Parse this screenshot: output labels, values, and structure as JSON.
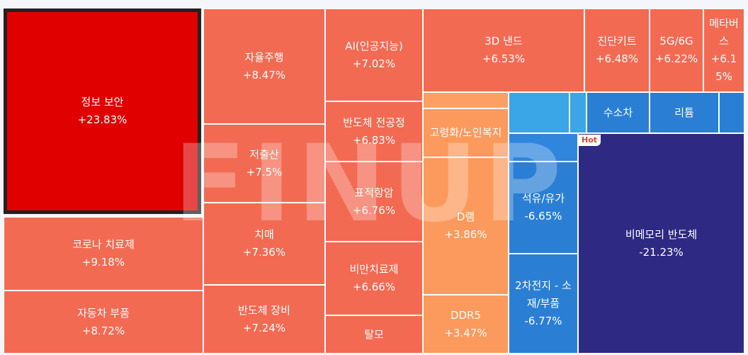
{
  "chart_data": {
    "type": "treemap",
    "cells": [
      {
        "id": "jeongbo-boan",
        "name": "정보 보안",
        "change": "+23.83%",
        "value": 23.83,
        "color": "#e00000",
        "selected": true,
        "r": [
          5,
          12,
          284,
          302
        ]
      },
      {
        "id": "corona",
        "name": "코로나 치료제",
        "change": "+9.18%",
        "value": 9.18,
        "color": "#f36a52",
        "r": [
          5,
          306,
          287,
          410
        ]
      },
      {
        "id": "car-parts",
        "name": "자동차 부품",
        "change": "+8.72%",
        "value": 8.72,
        "color": "#f36a52",
        "r": [
          5,
          410,
          287,
          499
        ]
      },
      {
        "id": "autonomous",
        "name": "자율주행",
        "change": "+8.47%",
        "value": 8.47,
        "color": "#f36a52",
        "r": [
          287,
          12,
          459,
          175
        ]
      },
      {
        "id": "low-birth",
        "name": "저출산",
        "change": "+7.5%",
        "value": 7.5,
        "color": "#f36a52",
        "r": [
          287,
          175,
          459,
          286
        ]
      },
      {
        "id": "dementia",
        "name": "치매",
        "change": "+7.36%",
        "value": 7.36,
        "color": "#f36a52",
        "r": [
          287,
          286,
          459,
          402
        ]
      },
      {
        "id": "semi-equip",
        "name": "반도체 장비",
        "change": "+7.24%",
        "value": 7.24,
        "color": "#f36a52",
        "r": [
          287,
          402,
          459,
          499
        ]
      },
      {
        "id": "ai",
        "name": "AI(인공지능)",
        "change": "+7.02%",
        "value": 7.02,
        "color": "#f36a52",
        "r": [
          459,
          12,
          597,
          143
        ]
      },
      {
        "id": "semi-front",
        "name": "반도체 전공정",
        "change": "+6.83%",
        "value": 6.83,
        "color": "#f36a52",
        "r": [
          459,
          143,
          597,
          228
        ]
      },
      {
        "id": "targeted",
        "name": "표적항암",
        "change": "+6.76%",
        "value": 6.76,
        "color": "#f36a52",
        "r": [
          459,
          228,
          597,
          341
        ]
      },
      {
        "id": "obesity",
        "name": "비만치료제",
        "change": "+6.66%",
        "value": 6.66,
        "color": "#f36a52",
        "r": [
          459,
          341,
          597,
          445
        ]
      },
      {
        "id": "hair-loss",
        "name": "탈모",
        "change": "",
        "value": null,
        "color": "#f36a52",
        "r": [
          459,
          445,
          597,
          499
        ]
      },
      {
        "id": "nand-3d",
        "name": "3D 낸드",
        "change": "+6.53%",
        "value": 6.53,
        "color": "#f36a52",
        "r": [
          597,
          12,
          825,
          130
        ]
      },
      {
        "id": "diagnostic",
        "name": "진단키트",
        "change": "+6.48%",
        "value": 6.48,
        "color": "#f36a52",
        "r": [
          825,
          12,
          917,
          130
        ]
      },
      {
        "id": "5g6g",
        "name": "5G/6G",
        "change": "+6.22%",
        "value": 6.22,
        "color": "#f36a52",
        "r": [
          917,
          12,
          993,
          130
        ]
      },
      {
        "id": "metaverse",
        "name": "메타버스",
        "change": "+6.15%",
        "value": 6.15,
        "color": "#f36a52",
        "r": [
          993,
          12,
          1051,
          130
        ]
      },
      {
        "id": "aging",
        "name": "고령화/노인복지",
        "change": "",
        "value": null,
        "color": "#fb9a5c",
        "r": [
          597,
          153,
          718,
          222
        ]
      },
      {
        "id": "dram",
        "name": "D램",
        "change": "+3.86%",
        "value": 3.86,
        "color": "#fb9a5c",
        "r": [
          597,
          222,
          718,
          416
        ]
      },
      {
        "id": "ddr5",
        "name": "DDR5",
        "change": "+3.47%",
        "value": 3.47,
        "color": "#fb9a5c",
        "r": [
          597,
          416,
          718,
          499
        ]
      },
      {
        "id": "small-a",
        "name": "",
        "change": "",
        "value": null,
        "color": "#fba062",
        "r": [
          597,
          130,
          718,
          153
        ]
      },
      {
        "id": "small-b",
        "name": "",
        "change": "",
        "value": null,
        "color": "#3aa6e8",
        "r": [
          718,
          130,
          804,
          188
        ]
      },
      {
        "id": "small-c",
        "name": "",
        "change": "",
        "value": null,
        "color": "#3aa6e8",
        "r": [
          804,
          130,
          828,
          188
        ]
      },
      {
        "id": "hydrogen",
        "name": "수소차",
        "change": "",
        "value": null,
        "color": "#2a7fd4",
        "r": [
          828,
          130,
          917,
          188
        ]
      },
      {
        "id": "lithium",
        "name": "리튬",
        "change": "",
        "value": null,
        "color": "#2a7fd4",
        "r": [
          917,
          130,
          1015,
          188
        ]
      },
      {
        "id": "small-d",
        "name": "",
        "change": "",
        "value": null,
        "color": "#2a7fd4",
        "r": [
          1015,
          130,
          1051,
          188
        ]
      },
      {
        "id": "small-e",
        "name": "",
        "change": "",
        "value": null,
        "color": "#2f86dc",
        "r": [
          718,
          188,
          816,
          228
        ]
      },
      {
        "id": "oil",
        "name": "석유/유가",
        "change": "-6.65%",
        "value": -6.65,
        "color": "#2a7fd4",
        "r": [
          718,
          228,
          816,
          358
        ]
      },
      {
        "id": "battery",
        "name": "2차전지 - 소재/부품",
        "change": "-6.77%",
        "value": -6.77,
        "color": "#2a7fd4",
        "r": [
          718,
          358,
          816,
          499
        ]
      },
      {
        "id": "non-memory",
        "name": "비메모리 반도체",
        "change": "-21.23%",
        "value": -21.23,
        "color": "#2e2a83",
        "r": [
          816,
          188,
          1051,
          499
        ]
      }
    ]
  },
  "watermark": "FINUP",
  "hot_badge": "Hot"
}
